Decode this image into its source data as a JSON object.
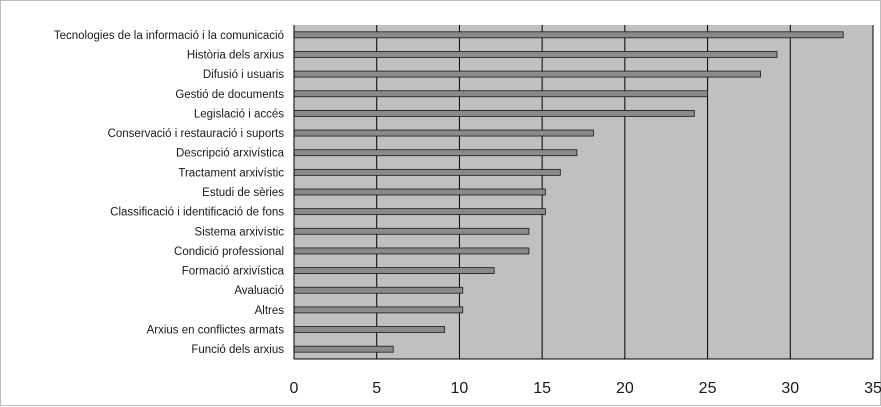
{
  "chart_data": {
    "type": "bar",
    "orientation": "horizontal",
    "categories": [
      "Tecnologies de la informació i la comunicació",
      "Història dels arxius",
      "Difusió i usuaris",
      "Gestió de documents",
      "Legislació i accés",
      "Conservació i restauració i suports",
      "Descripció arxivística",
      "Tractament arxivístic",
      "Estudi de sèries",
      "Classificació i identificació de fons",
      "Sistema arxivístic",
      "Condició professional",
      "Formació arxivística",
      "Avaluació",
      "Altres",
      "Arxius en conflictes armats",
      "Funció dels arxius"
    ],
    "values": [
      33.2,
      29.2,
      28.2,
      25.0,
      24.2,
      18.1,
      17.1,
      16.1,
      15.2,
      15.2,
      14.2,
      14.2,
      12.1,
      10.2,
      10.2,
      9.1,
      6.0
    ],
    "title": "",
    "xlabel": "",
    "ylabel": "",
    "xlim": [
      0,
      35
    ],
    "xticks": [
      0,
      5,
      10,
      15,
      20,
      25,
      30,
      35
    ],
    "grid": "vertical",
    "legend": "none",
    "colors": {
      "plot_background": "#c0c0c0",
      "bar_fill": "#8a8a8a",
      "bar_stroke": "#1a1a1a",
      "gridline": "#000000",
      "text": "#1a1a1a"
    }
  }
}
